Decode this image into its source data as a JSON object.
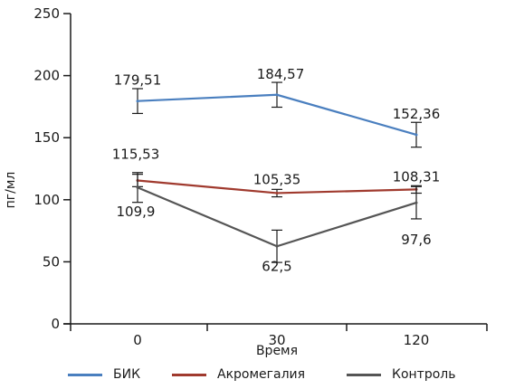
{
  "chart_data": {
    "type": "line",
    "categories": [
      "0",
      "30",
      "120"
    ],
    "series": [
      {
        "name": "БИК",
        "color": "#4a7fbf",
        "values": [
          179.51,
          184.57,
          152.36
        ],
        "err": [
          10,
          10,
          10
        ],
        "labels": [
          "179,51",
          "184,57",
          "152,36"
        ]
      },
      {
        "name": "Акромегалия",
        "color": "#a03a2e",
        "values": [
          115.53,
          105.35,
          108.31
        ],
        "err": [
          5,
          3,
          3
        ],
        "labels": [
          "115,53",
          "105,35",
          "108,31"
        ]
      },
      {
        "name": "Контроль",
        "color": "#555555",
        "values": [
          109.9,
          62.5,
          97.6
        ],
        "err": [
          12,
          13,
          13
        ],
        "labels": [
          "109,9",
          "62,5",
          "97,6"
        ]
      }
    ],
    "ylim": [
      0,
      250
    ],
    "yticks": [
      "0",
      "50",
      "100",
      "150",
      "200",
      "250"
    ],
    "xlabel": "Время",
    "ylabel": "пг/мл",
    "legend_position": "bottom"
  }
}
